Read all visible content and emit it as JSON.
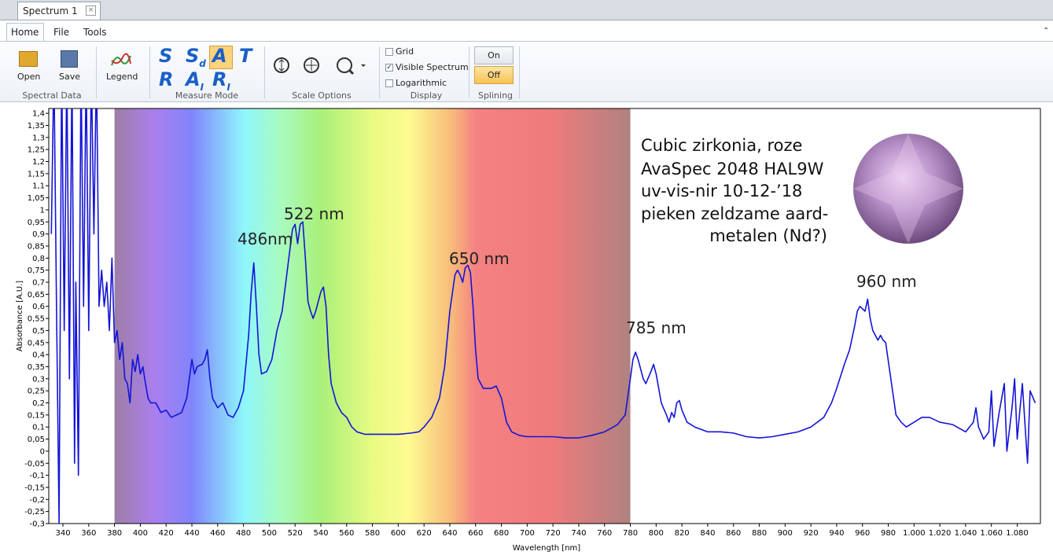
{
  "window": {
    "tab": "Spectrum 1"
  },
  "menu": [
    "Home",
    "File",
    "Tools"
  ],
  "ribbon": {
    "spectral_data": {
      "label": "Spectral Data",
      "buttons": [
        "Open",
        "Save"
      ]
    },
    "legend": "Legend",
    "measure_mode": {
      "label": "Measure Mode",
      "modes": [
        {
          "letter": "S",
          "sub": ""
        },
        {
          "letter": "S",
          "sub": "d"
        },
        {
          "letter": "A",
          "sub": ""
        },
        {
          "letter": "T",
          "sub": ""
        },
        {
          "letter": "R",
          "sub": ""
        },
        {
          "letter": "A",
          "sub": "I"
        },
        {
          "letter": "R",
          "sub": "I"
        }
      ]
    },
    "scale_options": {
      "label": "Scale Options"
    },
    "display": {
      "label": "Display",
      "options": [
        {
          "label": "Grid",
          "checked": false
        },
        {
          "label": "Visible Spectrum",
          "checked": true
        },
        {
          "label": "Logarithmic",
          "checked": false
        }
      ]
    },
    "splining": {
      "label": "Splining",
      "on": "On",
      "off": "Off"
    }
  },
  "chart_data": {
    "type": "line",
    "xlabel": "Wavelength [nm]",
    "ylabel": "Absorbance [A.U.]",
    "color": "#1414d8",
    "grid": false,
    "log_scale": false,
    "visible_spectrum": [
      380,
      780
    ],
    "annotations": [
      "486nm",
      "522 nm",
      "650 nm",
      "785 nm",
      "960 nm"
    ],
    "note": [
      "Cubic zirkonia, roze",
      "AvaSpec 2048 HAL9W",
      "uv-vis-nir   10-12-’18",
      "pieken zeldzame aard-",
      "metalen (Nd?)"
    ],
    "xlim": [
      329,
      1098
    ],
    "ylim": [
      -0.3,
      1.42
    ],
    "xticks": [
      340,
      360,
      380,
      400,
      420,
      440,
      460,
      480,
      500,
      520,
      540,
      560,
      580,
      600,
      620,
      640,
      660,
      680,
      700,
      720,
      740,
      760,
      780,
      800,
      820,
      840,
      860,
      880,
      900,
      920,
      940,
      960,
      980,
      {
        "value": 1000,
        "label": "1.000"
      },
      {
        "value": 1020,
        "label": "1.020"
      },
      {
        "value": 1040,
        "label": "1.040"
      },
      {
        "value": 1060,
        "label": "1.060"
      },
      {
        "value": 1080,
        "label": "1.080"
      }
    ],
    "yticks": [
      {
        "value": -0.3,
        "label": "-0,3"
      },
      {
        "value": -0.25,
        "label": "-0,25"
      },
      {
        "value": -0.2,
        "label": "-0,2"
      },
      {
        "value": -0.15,
        "label": "-0,15"
      },
      {
        "value": -0.1,
        "label": "-0,1"
      },
      {
        "value": -0.05,
        "label": "-0,05"
      },
      0,
      {
        "value": 0.05,
        "label": "0,05"
      },
      {
        "value": 0.1,
        "label": "0,1"
      },
      {
        "value": 0.15,
        "label": "0,15"
      },
      {
        "value": 0.2,
        "label": "0,2"
      },
      {
        "value": 0.25,
        "label": "0,25"
      },
      {
        "value": 0.3,
        "label": "0,3"
      },
      {
        "value": 0.35,
        "label": "0,35"
      },
      {
        "value": 0.4,
        "label": "0,4"
      },
      {
        "value": 0.45,
        "label": "0,45"
      },
      {
        "value": 0.5,
        "label": "0,5"
      },
      {
        "value": 0.55,
        "label": "0,55"
      },
      {
        "value": 0.6,
        "label": "0,6"
      },
      {
        "value": 0.65,
        "label": "0,65"
      },
      {
        "value": 0.7,
        "label": "0,7"
      },
      {
        "value": 0.75,
        "label": "0,75"
      },
      {
        "value": 0.8,
        "label": "0,8"
      },
      {
        "value": 0.85,
        "label": "0,85"
      },
      {
        "value": 0.9,
        "label": "0,9"
      },
      {
        "value": 0.95,
        "label": "0,95"
      },
      1,
      {
        "value": 1.05,
        "label": "1,05"
      },
      {
        "value": 1.1,
        "label": "1,1"
      },
      {
        "value": 1.15,
        "label": "1,15"
      },
      {
        "value": 1.2,
        "label": "1,2"
      },
      {
        "value": 1.25,
        "label": "1,25"
      },
      {
        "value": 1.3,
        "label": "1,3"
      },
      {
        "value": 1.35,
        "label": "1,35"
      },
      {
        "value": 1.4,
        "label": "1,4"
      }
    ],
    "x": [
      331,
      333,
      335,
      337,
      339,
      341,
      343,
      345,
      347,
      349,
      350,
      352,
      354,
      356,
      358,
      360,
      362,
      364,
      366,
      368,
      370,
      372,
      374,
      376,
      378,
      380,
      382,
      384,
      386,
      388,
      390,
      392,
      394,
      396,
      398,
      400,
      402,
      404,
      406,
      408,
      412,
      416,
      420,
      424,
      428,
      432,
      436,
      440,
      442,
      444,
      448,
      450,
      452,
      454,
      456,
      460,
      464,
      468,
      472,
      476,
      480,
      484,
      486,
      488,
      490,
      492,
      494,
      498,
      502,
      506,
      510,
      514,
      518,
      520,
      522,
      524,
      526,
      528,
      530,
      532,
      534,
      536,
      538,
      540,
      542,
      544,
      546,
      548,
      552,
      556,
      560,
      564,
      568,
      574,
      580,
      590,
      600,
      610,
      616,
      620,
      626,
      632,
      636,
      640,
      644,
      646,
      648,
      650,
      652,
      654,
      656,
      658,
      660,
      662,
      666,
      672,
      676,
      680,
      684,
      688,
      694,
      700,
      710,
      720,
      730,
      740,
      750,
      760,
      770,
      776,
      780,
      782,
      784,
      786,
      790,
      792,
      796,
      798,
      800,
      804,
      808,
      810,
      812,
      814,
      816,
      818,
      820,
      824,
      830,
      840,
      850,
      860,
      870,
      880,
      890,
      900,
      910,
      920,
      930,
      936,
      940,
      946,
      950,
      954,
      956,
      958,
      962,
      964,
      966,
      968,
      972,
      974,
      976,
      978,
      982,
      986,
      990,
      994,
      1000,
      1006,
      1012,
      1020,
      1030,
      1040,
      1046,
      1048,
      1050,
      1054,
      1058,
      1060,
      1062,
      1066,
      1070,
      1072,
      1076,
      1078,
      1080,
      1084,
      1088,
      1090,
      1094
    ],
    "values": [
      0.9,
      1.6,
      0.6,
      -0.3,
      1.6,
      0.5,
      1.6,
      0.3,
      1.6,
      -0.05,
      0.7,
      -0.1,
      1.6,
      0.6,
      1.6,
      0.5,
      1.6,
      0.9,
      1.6,
      0.6,
      0.75,
      0.6,
      0.7,
      0.5,
      0.8,
      0.45,
      0.5,
      0.38,
      0.45,
      0.3,
      0.28,
      0.2,
      0.38,
      0.33,
      0.4,
      0.32,
      0.35,
      0.28,
      0.22,
      0.2,
      0.2,
      0.16,
      0.17,
      0.14,
      0.15,
      0.16,
      0.22,
      0.38,
      0.32,
      0.35,
      0.36,
      0.38,
      0.42,
      0.3,
      0.22,
      0.18,
      0.2,
      0.15,
      0.14,
      0.18,
      0.25,
      0.48,
      0.66,
      0.78,
      0.6,
      0.4,
      0.32,
      0.33,
      0.38,
      0.5,
      0.58,
      0.75,
      0.92,
      0.94,
      0.86,
      0.94,
      0.95,
      0.8,
      0.62,
      0.58,
      0.55,
      0.58,
      0.62,
      0.66,
      0.68,
      0.6,
      0.4,
      0.28,
      0.2,
      0.16,
      0.14,
      0.1,
      0.08,
      0.07,
      0.07,
      0.07,
      0.07,
      0.075,
      0.08,
      0.1,
      0.14,
      0.22,
      0.35,
      0.58,
      0.73,
      0.75,
      0.73,
      0.7,
      0.76,
      0.77,
      0.74,
      0.6,
      0.42,
      0.3,
      0.26,
      0.26,
      0.27,
      0.22,
      0.12,
      0.08,
      0.065,
      0.06,
      0.06,
      0.06,
      0.055,
      0.055,
      0.065,
      0.08,
      0.11,
      0.15,
      0.3,
      0.38,
      0.41,
      0.38,
      0.3,
      0.28,
      0.33,
      0.36,
      0.32,
      0.2,
      0.15,
      0.12,
      0.16,
      0.14,
      0.2,
      0.21,
      0.17,
      0.12,
      0.1,
      0.08,
      0.08,
      0.075,
      0.06,
      0.055,
      0.06,
      0.07,
      0.08,
      0.1,
      0.14,
      0.2,
      0.26,
      0.36,
      0.42,
      0.52,
      0.58,
      0.6,
      0.58,
      0.63,
      0.55,
      0.5,
      0.46,
      0.48,
      0.46,
      0.45,
      0.3,
      0.15,
      0.12,
      0.1,
      0.12,
      0.14,
      0.14,
      0.12,
      0.11,
      0.08,
      0.12,
      0.18,
      0.1,
      0.05,
      0.08,
      0.25,
      0.02,
      0.16,
      0.28,
      0.0,
      0.18,
      0.3,
      0.05,
      0.28,
      -0.05,
      0.25,
      0.2
    ]
  }
}
